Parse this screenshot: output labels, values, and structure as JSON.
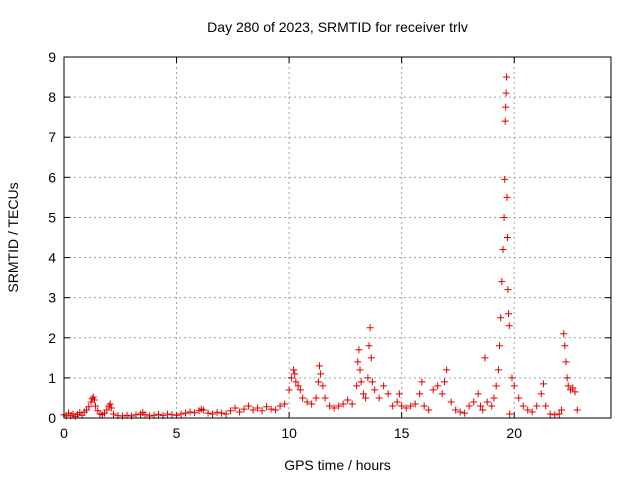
{
  "chart_data": {
    "type": "scatter",
    "title": "Day 280 of 2023, SRMTID for receiver trlv",
    "xlabel": "GPS time / hours",
    "ylabel": "SRMTID / TECUs",
    "xlim": [
      0,
      24.3
    ],
    "ylim": [
      0,
      9
    ],
    "xticks": [
      0,
      5,
      10,
      15,
      20
    ],
    "yticks": [
      0,
      1,
      2,
      3,
      4,
      5,
      6,
      7,
      8,
      9
    ],
    "grid": true,
    "legend": "none",
    "marker": "plus",
    "color": "#e00000",
    "series": [
      {
        "points": [
          [
            0.0,
            0.08
          ],
          [
            0.1,
            0.05
          ],
          [
            0.2,
            0.12
          ],
          [
            0.3,
            0.06
          ],
          [
            0.4,
            0.1
          ],
          [
            0.5,
            0.04
          ],
          [
            0.6,
            0.09
          ],
          [
            0.7,
            0.13
          ],
          [
            0.8,
            0.07
          ],
          [
            0.9,
            0.15
          ],
          [
            1.0,
            0.2
          ],
          [
            1.1,
            0.28
          ],
          [
            1.2,
            0.4
          ],
          [
            1.25,
            0.48
          ],
          [
            1.3,
            0.52
          ],
          [
            1.35,
            0.45
          ],
          [
            1.4,
            0.3
          ],
          [
            1.5,
            0.18
          ],
          [
            1.6,
            0.1
          ],
          [
            1.7,
            0.08
          ],
          [
            1.8,
            0.12
          ],
          [
            1.9,
            0.2
          ],
          [
            2.0,
            0.3
          ],
          [
            2.05,
            0.35
          ],
          [
            2.1,
            0.25
          ],
          [
            2.2,
            0.1
          ],
          [
            2.4,
            0.06
          ],
          [
            2.6,
            0.05
          ],
          [
            2.8,
            0.07
          ],
          [
            3.0,
            0.05
          ],
          [
            3.2,
            0.08
          ],
          [
            3.4,
            0.1
          ],
          [
            3.5,
            0.14
          ],
          [
            3.6,
            0.08
          ],
          [
            3.8,
            0.05
          ],
          [
            4.0,
            0.07
          ],
          [
            4.2,
            0.09
          ],
          [
            4.4,
            0.06
          ],
          [
            4.6,
            0.1
          ],
          [
            4.8,
            0.08
          ],
          [
            5.0,
            0.07
          ],
          [
            5.2,
            0.1
          ],
          [
            5.4,
            0.12
          ],
          [
            5.6,
            0.15
          ],
          [
            5.8,
            0.13
          ],
          [
            6.0,
            0.18
          ],
          [
            6.1,
            0.22
          ],
          [
            6.2,
            0.2
          ],
          [
            6.4,
            0.12
          ],
          [
            6.6,
            0.1
          ],
          [
            6.8,
            0.14
          ],
          [
            7.0,
            0.12
          ],
          [
            7.2,
            0.1
          ],
          [
            7.4,
            0.18
          ],
          [
            7.6,
            0.25
          ],
          [
            7.8,
            0.15
          ],
          [
            8.0,
            0.22
          ],
          [
            8.2,
            0.3
          ],
          [
            8.4,
            0.2
          ],
          [
            8.6,
            0.25
          ],
          [
            8.8,
            0.18
          ],
          [
            9.0,
            0.28
          ],
          [
            9.2,
            0.22
          ],
          [
            9.4,
            0.2
          ],
          [
            9.6,
            0.3
          ],
          [
            9.8,
            0.35
          ],
          [
            10.0,
            0.7
          ],
          [
            10.1,
            1.0
          ],
          [
            10.2,
            1.2
          ],
          [
            10.25,
            1.1
          ],
          [
            10.3,
            0.9
          ],
          [
            10.4,
            0.8
          ],
          [
            10.5,
            0.7
          ],
          [
            10.6,
            0.5
          ],
          [
            10.8,
            0.4
          ],
          [
            11.0,
            0.35
          ],
          [
            11.2,
            0.5
          ],
          [
            11.3,
            0.9
          ],
          [
            11.35,
            1.3
          ],
          [
            11.4,
            1.1
          ],
          [
            11.5,
            0.8
          ],
          [
            11.6,
            0.5
          ],
          [
            11.8,
            0.3
          ],
          [
            12.0,
            0.25
          ],
          [
            12.2,
            0.3
          ],
          [
            12.4,
            0.35
          ],
          [
            12.6,
            0.45
          ],
          [
            12.8,
            0.35
          ],
          [
            13.0,
            0.8
          ],
          [
            13.05,
            1.4
          ],
          [
            13.1,
            1.7
          ],
          [
            13.15,
            1.2
          ],
          [
            13.2,
            0.9
          ],
          [
            13.3,
            0.6
          ],
          [
            13.4,
            0.5
          ],
          [
            13.5,
            1.0
          ],
          [
            13.55,
            1.8
          ],
          [
            13.6,
            2.25
          ],
          [
            13.65,
            1.5
          ],
          [
            13.7,
            0.9
          ],
          [
            13.8,
            0.7
          ],
          [
            14.0,
            0.5
          ],
          [
            14.2,
            0.8
          ],
          [
            14.4,
            0.6
          ],
          [
            14.6,
            0.3
          ],
          [
            14.8,
            0.4
          ],
          [
            14.9,
            0.6
          ],
          [
            15.0,
            0.3
          ],
          [
            15.2,
            0.25
          ],
          [
            15.4,
            0.3
          ],
          [
            15.6,
            0.35
          ],
          [
            15.8,
            0.6
          ],
          [
            15.9,
            0.9
          ],
          [
            16.0,
            0.3
          ],
          [
            16.2,
            0.2
          ],
          [
            16.4,
            0.7
          ],
          [
            16.6,
            0.8
          ],
          [
            16.8,
            0.6
          ],
          [
            16.9,
            0.9
          ],
          [
            17.0,
            1.2
          ],
          [
            17.2,
            0.4
          ],
          [
            17.4,
            0.2
          ],
          [
            17.6,
            0.15
          ],
          [
            17.8,
            0.12
          ],
          [
            18.0,
            0.3
          ],
          [
            18.2,
            0.4
          ],
          [
            18.4,
            0.6
          ],
          [
            18.5,
            0.3
          ],
          [
            18.6,
            0.2
          ],
          [
            18.7,
            1.5
          ],
          [
            18.8,
            0.4
          ],
          [
            19.0,
            0.3
          ],
          [
            19.1,
            0.5
          ],
          [
            19.2,
            0.8
          ],
          [
            19.3,
            1.2
          ],
          [
            19.35,
            1.8
          ],
          [
            19.4,
            2.5
          ],
          [
            19.45,
            3.4
          ],
          [
            19.5,
            4.2
          ],
          [
            19.55,
            5.0
          ],
          [
            19.58,
            5.95
          ],
          [
            19.6,
            7.4
          ],
          [
            19.62,
            7.75
          ],
          [
            19.64,
            8.1
          ],
          [
            19.66,
            8.5
          ],
          [
            19.68,
            5.5
          ],
          [
            19.7,
            4.5
          ],
          [
            19.72,
            3.2
          ],
          [
            19.75,
            2.6
          ],
          [
            19.78,
            2.3
          ],
          [
            19.8,
            0.1
          ],
          [
            19.9,
            1.0
          ],
          [
            20.0,
            0.8
          ],
          [
            20.2,
            0.5
          ],
          [
            20.4,
            0.3
          ],
          [
            20.6,
            0.2
          ],
          [
            20.8,
            0.15
          ],
          [
            21.0,
            0.3
          ],
          [
            21.2,
            0.6
          ],
          [
            21.3,
            0.85
          ],
          [
            21.4,
            0.3
          ],
          [
            21.6,
            0.1
          ],
          [
            21.8,
            0.08
          ],
          [
            22.0,
            0.1
          ],
          [
            22.1,
            0.2
          ],
          [
            22.2,
            2.1
          ],
          [
            22.25,
            1.8
          ],
          [
            22.3,
            1.4
          ],
          [
            22.35,
            1.0
          ],
          [
            22.4,
            0.8
          ],
          [
            22.5,
            0.7
          ],
          [
            22.6,
            0.75
          ],
          [
            22.7,
            0.65
          ],
          [
            22.8,
            0.2
          ]
        ]
      }
    ]
  }
}
